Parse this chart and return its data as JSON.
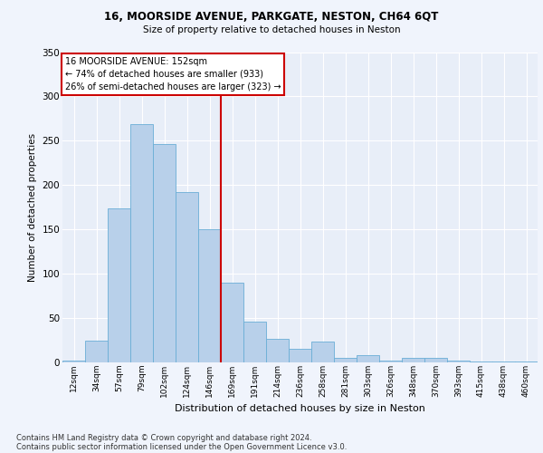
{
  "title_line1": "16, MOORSIDE AVENUE, PARKGATE, NESTON, CH64 6QT",
  "title_line2": "Size of property relative to detached houses in Neston",
  "xlabel": "Distribution of detached houses by size in Neston",
  "ylabel": "Number of detached properties",
  "bar_color": "#b8d0ea",
  "bar_edge_color": "#6aaed6",
  "background_color": "#e8eef8",
  "grid_color": "#ffffff",
  "categories": [
    "12sqm",
    "34sqm",
    "57sqm",
    "79sqm",
    "102sqm",
    "124sqm",
    "146sqm",
    "169sqm",
    "191sqm",
    "214sqm",
    "236sqm",
    "258sqm",
    "281sqm",
    "303sqm",
    "326sqm",
    "348sqm",
    "370sqm",
    "393sqm",
    "415sqm",
    "438sqm",
    "460sqm"
  ],
  "values": [
    2,
    25,
    174,
    269,
    246,
    192,
    150,
    90,
    46,
    27,
    15,
    23,
    5,
    8,
    2,
    5,
    5,
    2,
    1,
    1,
    1
  ],
  "ylim": [
    0,
    350
  ],
  "yticks": [
    0,
    50,
    100,
    150,
    200,
    250,
    300,
    350
  ],
  "property_line_x": 6.5,
  "annotation_text": "16 MOORSIDE AVENUE: 152sqm\n← 74% of detached houses are smaller (933)\n26% of semi-detached houses are larger (323) →",
  "annotation_box_color": "#ffffff",
  "annotation_box_edge_color": "#cc0000",
  "vline_color": "#cc0000",
  "footnote1": "Contains HM Land Registry data © Crown copyright and database right 2024.",
  "footnote2": "Contains public sector information licensed under the Open Government Licence v3.0.",
  "fig_bg": "#f0f4fc"
}
